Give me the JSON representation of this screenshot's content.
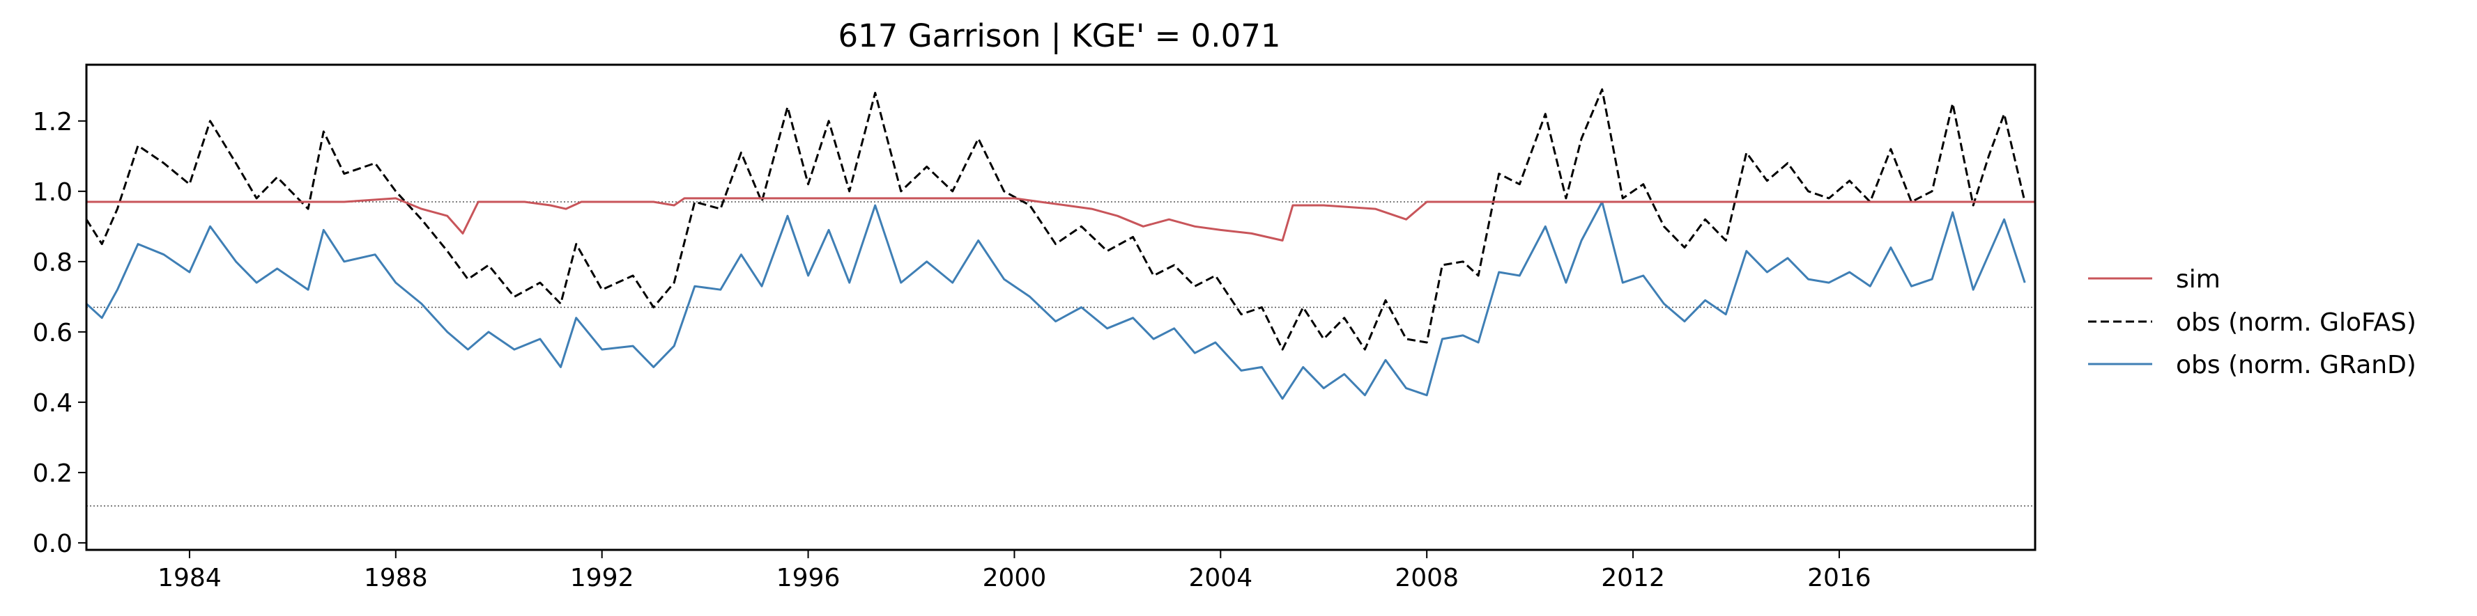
{
  "chart_data": {
    "type": "line",
    "title": "617  Garrison | KGE' = 0.071",
    "xlabel": "",
    "ylabel": "",
    "xlim": [
      1982.0,
      2019.8
    ],
    "ylim": [
      -0.02,
      1.36
    ],
    "x_ticks": [
      "1984",
      "1988",
      "1992",
      "1996",
      "2000",
      "2004",
      "2008",
      "2012",
      "2016"
    ],
    "y_ticks": [
      "0.0",
      "0.2",
      "0.4",
      "0.6",
      "0.8",
      "1.0",
      "1.2"
    ],
    "grid": false,
    "legend_position": "outside-right",
    "reference_lines": [
      0.97,
      0.67,
      0.105
    ],
    "series": [
      {
        "name": "sim",
        "color": "#c8555a",
        "dash": "solid",
        "points": [
          [
            1982.0,
            0.97
          ],
          [
            1983.0,
            0.97
          ],
          [
            1984.0,
            0.97
          ],
          [
            1985.0,
            0.97
          ],
          [
            1986.0,
            0.97
          ],
          [
            1987.0,
            0.97
          ],
          [
            1988.0,
            0.98
          ],
          [
            1988.5,
            0.95
          ],
          [
            1989.0,
            0.93
          ],
          [
            1989.3,
            0.88
          ],
          [
            1989.6,
            0.97
          ],
          [
            1990.5,
            0.97
          ],
          [
            1991.0,
            0.96
          ],
          [
            1991.3,
            0.95
          ],
          [
            1991.6,
            0.97
          ],
          [
            1993.0,
            0.97
          ],
          [
            1993.4,
            0.96
          ],
          [
            1993.6,
            0.98
          ],
          [
            1994.0,
            0.98
          ],
          [
            1996.0,
            0.98
          ],
          [
            1998.0,
            0.98
          ],
          [
            2000.0,
            0.98
          ],
          [
            2000.5,
            0.97
          ],
          [
            2001.0,
            0.96
          ],
          [
            2001.5,
            0.95
          ],
          [
            2002.0,
            0.93
          ],
          [
            2002.5,
            0.9
          ],
          [
            2003.0,
            0.92
          ],
          [
            2003.5,
            0.9
          ],
          [
            2004.0,
            0.89
          ],
          [
            2004.6,
            0.88
          ],
          [
            2005.2,
            0.86
          ],
          [
            2005.4,
            0.96
          ],
          [
            2006.0,
            0.96
          ],
          [
            2007.0,
            0.95
          ],
          [
            2007.6,
            0.92
          ],
          [
            2008.0,
            0.97
          ],
          [
            2009.0,
            0.97
          ],
          [
            2012.0,
            0.97
          ],
          [
            2015.0,
            0.97
          ],
          [
            2019.8,
            0.97
          ]
        ]
      },
      {
        "name": "obs (norm. GloFAS)",
        "color": "#000000",
        "dash": "dashed",
        "points": [
          [
            1982.0,
            0.92
          ],
          [
            1982.3,
            0.85
          ],
          [
            1982.6,
            0.95
          ],
          [
            1983.0,
            1.13
          ],
          [
            1983.5,
            1.08
          ],
          [
            1984.0,
            1.02
          ],
          [
            1984.4,
            1.2
          ],
          [
            1984.9,
            1.08
          ],
          [
            1985.3,
            0.98
          ],
          [
            1985.7,
            1.04
          ],
          [
            1986.3,
            0.95
          ],
          [
            1986.6,
            1.17
          ],
          [
            1987.0,
            1.05
          ],
          [
            1987.6,
            1.08
          ],
          [
            1988.0,
            1.0
          ],
          [
            1988.5,
            0.92
          ],
          [
            1989.0,
            0.83
          ],
          [
            1989.4,
            0.75
          ],
          [
            1989.8,
            0.79
          ],
          [
            1990.3,
            0.7
          ],
          [
            1990.8,
            0.74
          ],
          [
            1991.2,
            0.68
          ],
          [
            1991.5,
            0.85
          ],
          [
            1992.0,
            0.72
          ],
          [
            1992.6,
            0.76
          ],
          [
            1993.0,
            0.67
          ],
          [
            1993.4,
            0.74
          ],
          [
            1993.8,
            0.97
          ],
          [
            1994.3,
            0.95
          ],
          [
            1994.7,
            1.11
          ],
          [
            1995.1,
            0.97
          ],
          [
            1995.6,
            1.24
          ],
          [
            1996.0,
            1.02
          ],
          [
            1996.4,
            1.2
          ],
          [
            1996.8,
            1.0
          ],
          [
            1997.3,
            1.28
          ],
          [
            1997.8,
            1.0
          ],
          [
            1998.3,
            1.07
          ],
          [
            1998.8,
            1.0
          ],
          [
            1999.3,
            1.15
          ],
          [
            1999.8,
            1.0
          ],
          [
            2000.3,
            0.96
          ],
          [
            2000.8,
            0.85
          ],
          [
            2001.3,
            0.9
          ],
          [
            2001.8,
            0.83
          ],
          [
            2002.3,
            0.87
          ],
          [
            2002.7,
            0.76
          ],
          [
            2003.1,
            0.79
          ],
          [
            2003.5,
            0.73
          ],
          [
            2003.9,
            0.76
          ],
          [
            2004.4,
            0.65
          ],
          [
            2004.8,
            0.67
          ],
          [
            2005.2,
            0.55
          ],
          [
            2005.6,
            0.67
          ],
          [
            2006.0,
            0.58
          ],
          [
            2006.4,
            0.64
          ],
          [
            2006.8,
            0.55
          ],
          [
            2007.2,
            0.69
          ],
          [
            2007.6,
            0.58
          ],
          [
            2008.0,
            0.57
          ],
          [
            2008.3,
            0.79
          ],
          [
            2008.7,
            0.8
          ],
          [
            2009.0,
            0.76
          ],
          [
            2009.4,
            1.05
          ],
          [
            2009.8,
            1.02
          ],
          [
            2010.3,
            1.22
          ],
          [
            2010.7,
            0.98
          ],
          [
            2011.0,
            1.15
          ],
          [
            2011.4,
            1.29
          ],
          [
            2011.8,
            0.98
          ],
          [
            2012.2,
            1.02
          ],
          [
            2012.6,
            0.9
          ],
          [
            2013.0,
            0.84
          ],
          [
            2013.4,
            0.92
          ],
          [
            2013.8,
            0.86
          ],
          [
            2014.2,
            1.11
          ],
          [
            2014.6,
            1.03
          ],
          [
            2015.0,
            1.08
          ],
          [
            2015.4,
            1.0
          ],
          [
            2015.8,
            0.98
          ],
          [
            2016.2,
            1.03
          ],
          [
            2016.6,
            0.97
          ],
          [
            2017.0,
            1.12
          ],
          [
            2017.4,
            0.97
          ],
          [
            2017.8,
            1.0
          ],
          [
            2018.2,
            1.25
          ],
          [
            2018.6,
            0.96
          ],
          [
            2018.9,
            1.1
          ],
          [
            2019.2,
            1.22
          ],
          [
            2019.6,
            0.97
          ]
        ]
      },
      {
        "name": "obs (norm. GRanD)",
        "color": "#3f7fb5",
        "dash": "solid",
        "points": [
          [
            1982.0,
            0.68
          ],
          [
            1982.3,
            0.64
          ],
          [
            1982.6,
            0.72
          ],
          [
            1983.0,
            0.85
          ],
          [
            1983.5,
            0.82
          ],
          [
            1984.0,
            0.77
          ],
          [
            1984.4,
            0.9
          ],
          [
            1984.9,
            0.8
          ],
          [
            1985.3,
            0.74
          ],
          [
            1985.7,
            0.78
          ],
          [
            1986.3,
            0.72
          ],
          [
            1986.6,
            0.89
          ],
          [
            1987.0,
            0.8
          ],
          [
            1987.6,
            0.82
          ],
          [
            1988.0,
            0.74
          ],
          [
            1988.5,
            0.68
          ],
          [
            1989.0,
            0.6
          ],
          [
            1989.4,
            0.55
          ],
          [
            1989.8,
            0.6
          ],
          [
            1990.3,
            0.55
          ],
          [
            1990.8,
            0.58
          ],
          [
            1991.2,
            0.5
          ],
          [
            1991.5,
            0.64
          ],
          [
            1992.0,
            0.55
          ],
          [
            1992.6,
            0.56
          ],
          [
            1993.0,
            0.5
          ],
          [
            1993.4,
            0.56
          ],
          [
            1993.8,
            0.73
          ],
          [
            1994.3,
            0.72
          ],
          [
            1994.7,
            0.82
          ],
          [
            1995.1,
            0.73
          ],
          [
            1995.6,
            0.93
          ],
          [
            1996.0,
            0.76
          ],
          [
            1996.4,
            0.89
          ],
          [
            1996.8,
            0.74
          ],
          [
            1997.3,
            0.96
          ],
          [
            1997.8,
            0.74
          ],
          [
            1998.3,
            0.8
          ],
          [
            1998.8,
            0.74
          ],
          [
            1999.3,
            0.86
          ],
          [
            1999.8,
            0.75
          ],
          [
            2000.3,
            0.7
          ],
          [
            2000.8,
            0.63
          ],
          [
            2001.3,
            0.67
          ],
          [
            2001.8,
            0.61
          ],
          [
            2002.3,
            0.64
          ],
          [
            2002.7,
            0.58
          ],
          [
            2003.1,
            0.61
          ],
          [
            2003.5,
            0.54
          ],
          [
            2003.9,
            0.57
          ],
          [
            2004.4,
            0.49
          ],
          [
            2004.8,
            0.5
          ],
          [
            2005.2,
            0.41
          ],
          [
            2005.6,
            0.5
          ],
          [
            2006.0,
            0.44
          ],
          [
            2006.4,
            0.48
          ],
          [
            2006.8,
            0.42
          ],
          [
            2007.2,
            0.52
          ],
          [
            2007.6,
            0.44
          ],
          [
            2008.0,
            0.42
          ],
          [
            2008.3,
            0.58
          ],
          [
            2008.7,
            0.59
          ],
          [
            2009.0,
            0.57
          ],
          [
            2009.4,
            0.77
          ],
          [
            2009.8,
            0.76
          ],
          [
            2010.3,
            0.9
          ],
          [
            2010.7,
            0.74
          ],
          [
            2011.0,
            0.86
          ],
          [
            2011.4,
            0.97
          ],
          [
            2011.8,
            0.74
          ],
          [
            2012.2,
            0.76
          ],
          [
            2012.6,
            0.68
          ],
          [
            2013.0,
            0.63
          ],
          [
            2013.4,
            0.69
          ],
          [
            2013.8,
            0.65
          ],
          [
            2014.2,
            0.83
          ],
          [
            2014.6,
            0.77
          ],
          [
            2015.0,
            0.81
          ],
          [
            2015.4,
            0.75
          ],
          [
            2015.8,
            0.74
          ],
          [
            2016.2,
            0.77
          ],
          [
            2016.6,
            0.73
          ],
          [
            2017.0,
            0.84
          ],
          [
            2017.4,
            0.73
          ],
          [
            2017.8,
            0.75
          ],
          [
            2018.2,
            0.94
          ],
          [
            2018.6,
            0.72
          ],
          [
            2018.9,
            0.82
          ],
          [
            2019.2,
            0.92
          ],
          [
            2019.6,
            0.74
          ]
        ]
      }
    ]
  }
}
